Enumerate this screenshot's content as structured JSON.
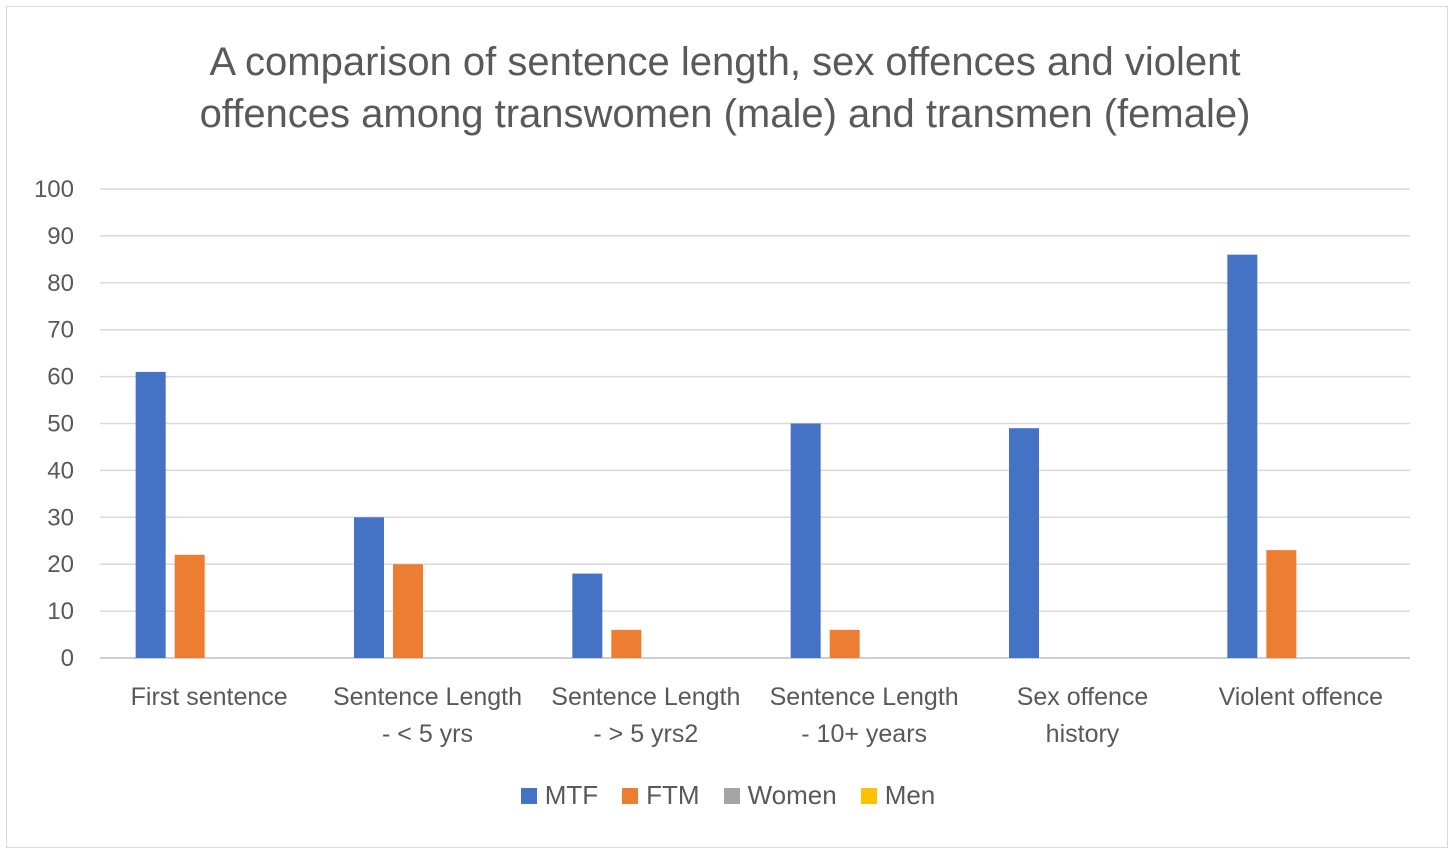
{
  "chart_data": {
    "type": "bar",
    "title_lines": [
      "A comparison of sentence length, sex offences and violent",
      "offences among transwomen (male) and transmen (female)"
    ],
    "categories": [
      [
        "First sentence"
      ],
      [
        "Sentence Length",
        "- < 5 yrs"
      ],
      [
        "Sentence Length",
        "- > 5 yrs2"
      ],
      [
        "Sentence Length",
        "- 10+ years"
      ],
      [
        "Sex offence",
        "history"
      ],
      [
        "Violent offence"
      ]
    ],
    "series": [
      {
        "name": "MTF",
        "color": "#4472c4",
        "values": [
          61,
          30,
          18,
          50,
          49,
          86
        ]
      },
      {
        "name": "FTM",
        "color": "#ed7d31",
        "values": [
          22,
          20,
          6,
          6,
          0,
          23
        ]
      },
      {
        "name": "Women",
        "color": "#a5a5a5",
        "values": [
          0,
          0,
          0,
          0,
          0,
          0
        ]
      },
      {
        "name": "Men",
        "color": "#ffc000",
        "values": [
          0,
          0,
          0,
          0,
          0,
          0
        ]
      }
    ],
    "ylim": [
      0,
      100
    ],
    "yticks": [
      0,
      10,
      20,
      30,
      40,
      50,
      60,
      70,
      80,
      90,
      100
    ],
    "grid": true,
    "legend_position": "bottom"
  }
}
